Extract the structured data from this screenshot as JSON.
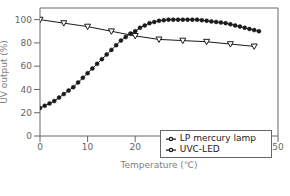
{
  "chart_data": {
    "type": "line",
    "xlabel": "Temperature (℃)",
    "ylabel": "UV output (%)",
    "xlim": [
      0,
      50
    ],
    "ylim": [
      0,
      110
    ],
    "xticks": [
      0,
      10,
      20,
      30,
      40,
      50
    ],
    "yticks": [
      0,
      20,
      40,
      60,
      80,
      100
    ],
    "grid": false,
    "legend": "lower right",
    "series": [
      {
        "name": "LP mercury lamp",
        "color": "#1a1a1a",
        "marker": "circle",
        "line_style": "solid",
        "x": [
          0,
          1,
          2,
          3,
          4,
          5,
          6,
          7,
          8,
          9,
          10,
          11,
          12,
          13,
          14,
          15,
          16,
          17,
          18,
          19,
          20,
          21,
          22,
          23,
          24,
          25,
          26,
          27,
          28,
          29,
          30,
          31,
          32,
          33,
          34,
          35,
          36,
          37,
          38,
          39,
          40,
          41,
          42,
          43,
          44,
          45,
          46
        ],
        "values": [
          24,
          26,
          28,
          30,
          33,
          36,
          39,
          42,
          46,
          50,
          54,
          58,
          62,
          66,
          70,
          74,
          78,
          82,
          85,
          88,
          90,
          93,
          95,
          97,
          98,
          99,
          99.5,
          100,
          100,
          100,
          100,
          100,
          100,
          100,
          99.5,
          99,
          98.5,
          98,
          97.5,
          97,
          96,
          95,
          94,
          93,
          92,
          91,
          90
        ]
      },
      {
        "name": "UVC-LED",
        "color": "#1a1a1a",
        "marker": "triangle_down",
        "line_style": "solid",
        "x": [
          0,
          5,
          10,
          15,
          20,
          25,
          30,
          35,
          40,
          45
        ],
        "values": [
          100,
          97,
          94,
          90,
          86,
          83,
          82,
          81,
          79,
          77
        ]
      }
    ]
  }
}
